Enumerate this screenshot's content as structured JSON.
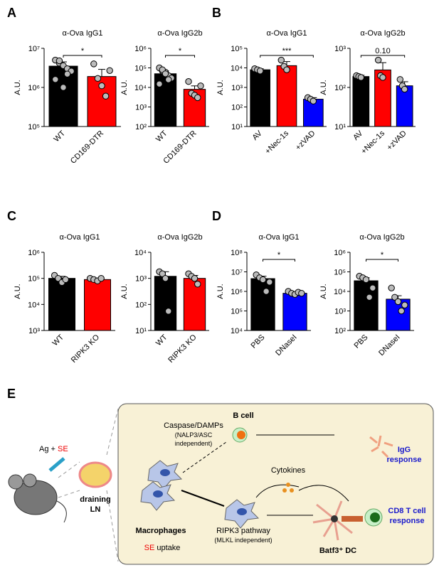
{
  "panel_labels": [
    "A",
    "B",
    "C",
    "D",
    "E"
  ],
  "chart_data": [
    {
      "type": "bar",
      "title": "α-Ova IgG1",
      "ylabel": "A.U.",
      "log": true,
      "categories": [
        "WT",
        "CD169-DTR"
      ],
      "colors": [
        "#000000",
        "#ff0000"
      ],
      "values": [
        3500000,
        1900000
      ],
      "errors": [
        1000000,
        1000000
      ],
      "points": [
        [
          5000000,
          4200000,
          3600000,
          3000000,
          2600000,
          1600000,
          4800000,
          1000000,
          2200000
        ],
        [
          4000000,
          1700000,
          1100000,
          600000,
          2700000
        ]
      ],
      "significance": "*",
      "ylim": [
        100000,
        10000000
      ],
      "yticks": [
        {
          "value": 100000,
          "label": "10⁵"
        },
        {
          "value": 1000000,
          "label": "10⁶"
        },
        {
          "value": 10000000,
          "label": "10⁷"
        }
      ]
    },
    {
      "type": "bar",
      "title": "α-Ova IgG2b",
      "ylabel": "A.U.",
      "log": true,
      "categories": [
        "WT",
        "CD169-DTR"
      ],
      "colors": [
        "#000000",
        "#ff0000"
      ],
      "values": [
        50000,
        8000
      ],
      "errors": [
        20000,
        4000
      ],
      "points": [
        [
          100000,
          70000,
          60000,
          40000,
          30000,
          15000,
          80000,
          50000,
          25000
        ],
        [
          20000,
          5000,
          4000,
          3000,
          12000
        ]
      ],
      "significance": "*",
      "ylim": [
        100,
        1000000
      ],
      "yticks": [
        {
          "value": 100,
          "label": "10²"
        },
        {
          "value": 1000,
          "label": "10³"
        },
        {
          "value": 10000,
          "label": "10⁴"
        },
        {
          "value": 100000,
          "label": "10⁵"
        },
        {
          "value": 1000000,
          "label": "10⁶"
        }
      ]
    },
    {
      "type": "bar",
      "title": "α-Ova IgG1",
      "ylabel": "A.U.",
      "log": true,
      "categories": [
        "AV",
        "+Nec-1s",
        "+zVAD"
      ],
      "colors": [
        "#000000",
        "#ff0000",
        "#0000ff"
      ],
      "values": [
        8000,
        13000,
        250
      ],
      "errors": [
        1000,
        8000,
        50
      ],
      "points": [
        [
          9000,
          8000,
          7000
        ],
        [
          25000,
          12000,
          8000
        ],
        [
          300,
          250,
          200
        ]
      ],
      "significance": "***",
      "ylim": [
        10,
        100000
      ],
      "yticks": [
        {
          "value": 10,
          "label": "10¹"
        },
        {
          "value": 100,
          "label": "10²"
        },
        {
          "value": 1000,
          "label": "10³"
        },
        {
          "value": 10000,
          "label": "10⁴"
        },
        {
          "value": 100000,
          "label": "10⁵"
        }
      ]
    },
    {
      "type": "bar",
      "title": "α-Ova IgG2b",
      "ylabel": "A.U.",
      "log": true,
      "categories": [
        "AV",
        "+Nec-1s",
        "+zVAD"
      ],
      "colors": [
        "#000000",
        "#ff0000",
        "#0000ff"
      ],
      "values": [
        190,
        280,
        110
      ],
      "errors": [
        15,
        150,
        30
      ],
      "points": [
        [
          200,
          190,
          180
        ],
        [
          500,
          200,
          180
        ],
        [
          160,
          110,
          90
        ]
      ],
      "significance": "0.10",
      "ylim": [
        10,
        1000
      ],
      "yticks": [
        {
          "value": 10,
          "label": "10¹"
        },
        {
          "value": 100,
          "label": "10²"
        },
        {
          "value": 1000,
          "label": "10³"
        }
      ]
    },
    {
      "type": "bar",
      "title": "α-Ova IgG1",
      "ylabel": "A.U.",
      "log": true,
      "categories": [
        "WT",
        "RIPK3 KO"
      ],
      "colors": [
        "#000000",
        "#ff0000"
      ],
      "values": [
        100000,
        90000
      ],
      "errors": [
        20000,
        10000
      ],
      "points": [
        [
          130000,
          100000,
          70000,
          90000
        ],
        [
          100000,
          90000,
          80000,
          100000
        ]
      ],
      "ylim": [
        1000,
        1000000
      ],
      "yticks": [
        {
          "value": 1000,
          "label": "10³"
        },
        {
          "value": 10000,
          "label": "10⁴"
        },
        {
          "value": 100000,
          "label": "10⁵"
        },
        {
          "value": 1000000,
          "label": "10⁶"
        }
      ]
    },
    {
      "type": "bar",
      "title": "α-Ova IgG2b",
      "ylabel": "A.U.",
      "log": true,
      "categories": [
        "WT",
        "RIPK3 KO"
      ],
      "colors": [
        "#000000",
        "#ff0000"
      ],
      "values": [
        1200,
        1000
      ],
      "errors": [
        600,
        300
      ],
      "points": [
        [
          1800,
          1500,
          1000,
          55
        ],
        [
          1500,
          1200,
          1000,
          600
        ]
      ],
      "ylim": [
        10,
        10000
      ],
      "yticks": [
        {
          "value": 10,
          "label": "10¹"
        },
        {
          "value": 100,
          "label": "10²"
        },
        {
          "value": 1000,
          "label": "10³"
        },
        {
          "value": 10000,
          "label": "10⁴"
        }
      ]
    },
    {
      "type": "bar",
      "title": "α-Ova IgG1",
      "ylabel": "A.U.",
      "log": true,
      "categories": [
        "PBS",
        "DNaseI"
      ],
      "colors": [
        "#000000",
        "#0000ff"
      ],
      "values": [
        4500000,
        800000
      ],
      "errors": [
        1500000,
        100000
      ],
      "points": [
        [
          7000000,
          5000000,
          4000000,
          1000000,
          3000000
        ],
        [
          1000000,
          800000,
          700000,
          900000,
          800000
        ]
      ],
      "significance": "*",
      "ylim": [
        10000,
        100000000
      ],
      "yticks": [
        {
          "value": 10000,
          "label": "10⁴"
        },
        {
          "value": 100000,
          "label": "10⁵"
        },
        {
          "value": 1000000,
          "label": "10⁶"
        },
        {
          "value": 10000000,
          "label": "10⁷"
        },
        {
          "value": 100000000,
          "label": "10⁸"
        }
      ]
    },
    {
      "type": "bar",
      "title": "α-Ova IgG2b",
      "ylabel": "A.U.",
      "log": true,
      "categories": [
        "PBS",
        "DNaseI"
      ],
      "colors": [
        "#000000",
        "#0000ff"
      ],
      "values": [
        35000,
        4000
      ],
      "errors": [
        15000,
        2000
      ],
      "points": [
        [
          60000,
          50000,
          40000,
          5000,
          15000
        ],
        [
          15000,
          5000,
          3000,
          1000,
          2000
        ]
      ],
      "significance": "*",
      "ylim": [
        100,
        1000000
      ],
      "yticks": [
        {
          "value": 100,
          "label": "10²"
        },
        {
          "value": 1000,
          "label": "10³"
        },
        {
          "value": 10000,
          "label": "10⁴"
        },
        {
          "value": 100000,
          "label": "10⁵"
        },
        {
          "value": 1000000,
          "label": "10⁶"
        }
      ]
    }
  ],
  "diagram": {
    "stimulus": "Ag + ",
    "agent": "SE",
    "ln": [
      "draining",
      "LN"
    ],
    "caspase": [
      "Caspase/DAMPs",
      "(NALP3/ASC",
      "independent)"
    ],
    "bcell": "B cell",
    "igg": [
      "IgG",
      "response"
    ],
    "cytokines": "Cytokines",
    "macrophages": "Macrophages",
    "uptake": " uptake",
    "ripk3": [
      "RIPK3 pathway",
      "(MLKL independent)"
    ],
    "cd8": [
      "CD8 T cell",
      "response"
    ],
    "dc": "Batf3⁺ DC"
  }
}
